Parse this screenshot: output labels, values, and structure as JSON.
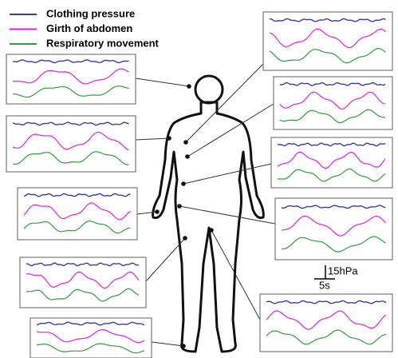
{
  "legend": [
    {
      "label": "Clothing pressure",
      "color": "#3b3ba8"
    },
    {
      "label": "Girth of abdomen",
      "color": "#e020e0"
    },
    {
      "label": "Respiratory movement",
      "color": "#2e9e3a"
    }
  ],
  "scale_bar": {
    "y_label": "15hPa",
    "x_label": "5s"
  }
}
